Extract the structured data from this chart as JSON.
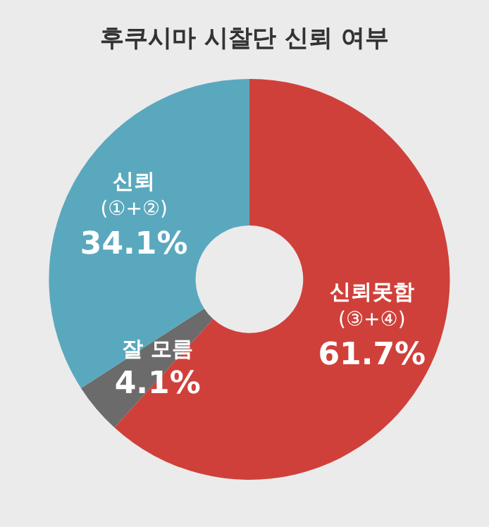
{
  "chart_data": {
    "type": "donut",
    "title": "후쿠시마 시찰단 신뢰 여부",
    "categories": [
      "신뢰못함\n(③+④)",
      "잘 모름",
      "신뢰\n(①+②)"
    ],
    "values": [
      61.7,
      4.1,
      34.1
    ],
    "colors": [
      "#d0403a",
      "#6b6b6b",
      "#5aa8be"
    ],
    "value_labels": [
      "61.7%",
      "4.1%",
      "34.1%"
    ]
  }
}
